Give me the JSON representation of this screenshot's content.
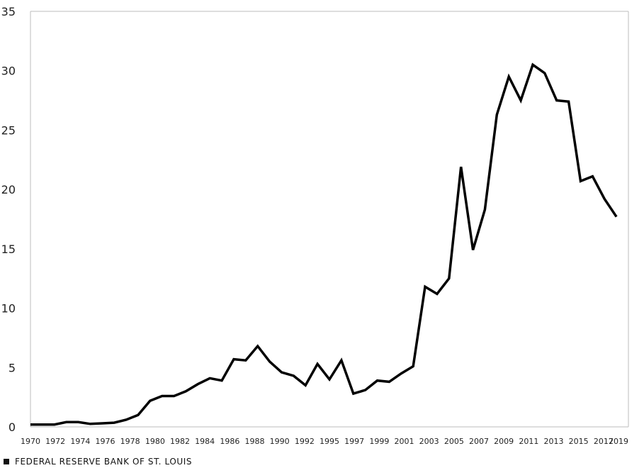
{
  "source_label": "FEDERAL RESERVE BANK OF ST. LOUIS",
  "colors": {
    "line": "#000000",
    "axis": "#bdbdbd",
    "text": "#222222"
  },
  "chart_data": {
    "type": "line",
    "title": "",
    "xlabel": "",
    "ylabel": "",
    "xlim": [
      1970,
      2020
    ],
    "ylim": [
      0,
      35
    ],
    "yticks": [
      0,
      5,
      10,
      15,
      20,
      25,
      30,
      35
    ],
    "xtick_labels": [
      "1970",
      "1972",
      "1974",
      "1976",
      "1978",
      "1980",
      "1982",
      "1984",
      "1986",
      "1988",
      "1990",
      "1992",
      "1995",
      "1997",
      "1999",
      "2001",
      "2003",
      "2005",
      "2007",
      "2009",
      "2011",
      "2013",
      "2015",
      "2017",
      "2019"
    ],
    "grid": false,
    "legend": "none",
    "series": [
      {
        "x": [
          1970,
          1971,
          1972,
          1973,
          1974,
          1975,
          1976,
          1977,
          1978,
          1979,
          1980,
          1981,
          1982,
          1983,
          1984,
          1985,
          1986,
          1987,
          1988,
          1989,
          1990,
          1991,
          1992,
          1993,
          1994,
          1995,
          1996,
          1997,
          1998,
          1999,
          2000,
          2001,
          2002,
          2003,
          2004,
          2005,
          2006,
          2007,
          2008,
          2009,
          2010,
          2011,
          2012,
          2013,
          2014,
          2015,
          2016,
          2017,
          2018,
          2019,
          2020
        ],
        "values": [
          0.2,
          0.2,
          0.2,
          0.4,
          0.4,
          0.25,
          0.3,
          0.35,
          0.6,
          1.0,
          2.2,
          2.6,
          2.6,
          3.0,
          3.6,
          4.1,
          3.9,
          5.7,
          5.6,
          6.8,
          5.5,
          4.6,
          4.3,
          3.5,
          5.3,
          4.0,
          5.6,
          2.8,
          3.1,
          3.9,
          3.8,
          4.5,
          5.1,
          11.8,
          11.2,
          12.5,
          21.9,
          14.9,
          18.3,
          26.3,
          29.5,
          27.5,
          30.5,
          29.8,
          27.5,
          27.4,
          20.7,
          21.1,
          19.2,
          17.7,
          null
        ]
      }
    ]
  }
}
